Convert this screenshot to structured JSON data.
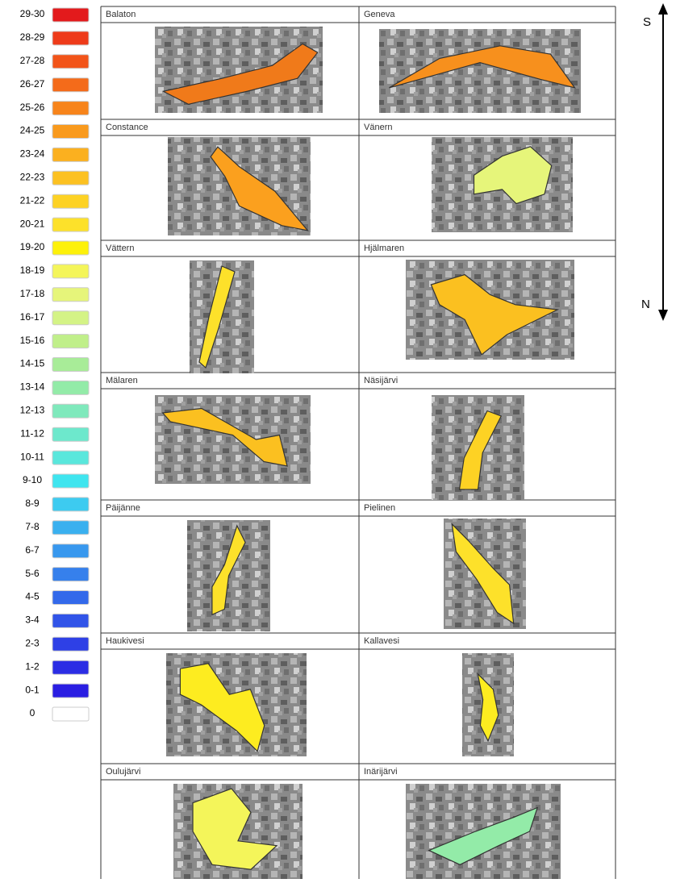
{
  "legend": {
    "items": [
      {
        "label": "29-30",
        "color": "#e31a1c"
      },
      {
        "label": "28-29",
        "color": "#ee3b1a"
      },
      {
        "label": "27-28",
        "color": "#f25419"
      },
      {
        "label": "26-27",
        "color": "#f46b1a"
      },
      {
        "label": "25-26",
        "color": "#f7841b"
      },
      {
        "label": "24-25",
        "color": "#f99a1d"
      },
      {
        "label": "23-24",
        "color": "#fbb01f"
      },
      {
        "label": "22-23",
        "color": "#fcc121"
      },
      {
        "label": "21-22",
        "color": "#fdd224"
      },
      {
        "label": "20-21",
        "color": "#fde12a"
      },
      {
        "label": "19-20",
        "color": "#fdf10a"
      },
      {
        "label": "18-19",
        "color": "#f4f55a"
      },
      {
        "label": "17-18",
        "color": "#e6f57a"
      },
      {
        "label": "16-17",
        "color": "#d4f386"
      },
      {
        "label": "15-16",
        "color": "#c0ef8a"
      },
      {
        "label": "14-15",
        "color": "#a8ec98"
      },
      {
        "label": "13-14",
        "color": "#93eba8"
      },
      {
        "label": "12-13",
        "color": "#7fe9bc"
      },
      {
        "label": "11-12",
        "color": "#6de8cc"
      },
      {
        "label": "10-11",
        "color": "#5ae7dc"
      },
      {
        "label": "9-10",
        "color": "#3fe5ef"
      },
      {
        "label": "8-9",
        "color": "#3dcbf0"
      },
      {
        "label": "7-8",
        "color": "#3ab0ef"
      },
      {
        "label": "6-7",
        "color": "#3898ee"
      },
      {
        "label": "5-6",
        "color": "#3680ec"
      },
      {
        "label": "4-5",
        "color": "#3369ea"
      },
      {
        "label": "3-4",
        "color": "#3154e8"
      },
      {
        "label": "2-3",
        "color": "#2e40e6"
      },
      {
        "label": "1-2",
        "color": "#2b2de4"
      },
      {
        "label": "0-1",
        "color": "#2a1ee2"
      },
      {
        "label": "0",
        "color": "#ffffff"
      }
    ]
  },
  "lakes": [
    {
      "name": "Balaton"
    },
    {
      "name": "Geneva"
    },
    {
      "name": "Constance"
    },
    {
      "name": "Vänern"
    },
    {
      "name": "Vättern"
    },
    {
      "name": "Hjälmaren"
    },
    {
      "name": "Mälaren"
    },
    {
      "name": "Näsijärvi"
    },
    {
      "name": "Päijänne"
    },
    {
      "name": "Pielinen"
    },
    {
      "name": "Haukivesi"
    },
    {
      "name": "Kallavesi"
    },
    {
      "name": "Oulujärvi"
    },
    {
      "name": "Inärijärvi"
    }
  ],
  "compass": {
    "top": "S",
    "bottom": "N"
  }
}
